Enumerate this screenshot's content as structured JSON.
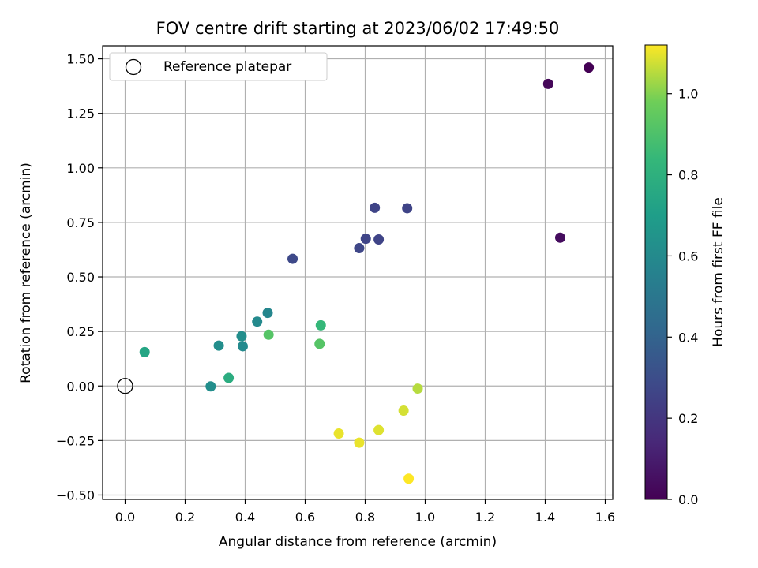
{
  "chart_data": {
    "type": "scatter",
    "title": "FOV centre drift starting at 2023/06/02 17:49:50",
    "xlabel": "Angular distance from reference (arcmin)",
    "ylabel": "Rotation from reference (arcmin)",
    "xlim": [
      -0.075,
      1.625
    ],
    "ylim": [
      -0.52,
      1.56
    ],
    "xticks": [
      0.0,
      0.2,
      0.4,
      0.6,
      0.8,
      1.0,
      1.2,
      1.4,
      1.6
    ],
    "xtick_labels": [
      "0.0",
      "0.2",
      "0.4",
      "0.6",
      "0.8",
      "1.0",
      "1.2",
      "1.4",
      "1.6"
    ],
    "yticks": [
      -0.5,
      -0.25,
      0.0,
      0.25,
      0.5,
      0.75,
      1.0,
      1.25,
      1.5
    ],
    "ytick_labels": [
      "−0.50",
      "−0.25",
      "0.00",
      "0.25",
      "0.50",
      "0.75",
      "1.00",
      "1.25",
      "1.50"
    ],
    "grid": true,
    "legend": {
      "position": "top-left",
      "entries": [
        "Reference platepar"
      ]
    },
    "reference_point": {
      "x": 0.0,
      "y": 0.0
    },
    "colorbar": {
      "label": "Hours from first FF file",
      "colormap": "viridis",
      "range": [
        0.0,
        1.12
      ],
      "ticks": [
        0.0,
        0.2,
        0.4,
        0.6,
        0.8,
        1.0
      ],
      "tick_labels": [
        "0.0",
        "0.2",
        "0.4",
        "0.6",
        "0.8",
        "1.0"
      ]
    },
    "points": [
      {
        "x": 1.545,
        "y": 1.46,
        "hours": 0.0
      },
      {
        "x": 1.41,
        "y": 1.385,
        "hours": 0.02
      },
      {
        "x": 1.45,
        "y": 0.68,
        "hours": 0.04
      },
      {
        "x": 0.94,
        "y": 0.815,
        "hours": 0.26
      },
      {
        "x": 0.832,
        "y": 0.817,
        "hours": 0.26
      },
      {
        "x": 0.802,
        "y": 0.675,
        "hours": 0.26
      },
      {
        "x": 0.845,
        "y": 0.672,
        "hours": 0.26
      },
      {
        "x": 0.78,
        "y": 0.632,
        "hours": 0.27
      },
      {
        "x": 0.558,
        "y": 0.583,
        "hours": 0.28
      },
      {
        "x": 0.475,
        "y": 0.335,
        "hours": 0.58
      },
      {
        "x": 0.44,
        "y": 0.295,
        "hours": 0.6
      },
      {
        "x": 0.388,
        "y": 0.228,
        "hours": 0.62
      },
      {
        "x": 0.312,
        "y": 0.185,
        "hours": 0.62
      },
      {
        "x": 0.392,
        "y": 0.182,
        "hours": 0.6
      },
      {
        "x": 0.285,
        "y": -0.002,
        "hours": 0.62
      },
      {
        "x": 0.065,
        "y": 0.155,
        "hours": 0.74
      },
      {
        "x": 0.345,
        "y": 0.037,
        "hours": 0.78
      },
      {
        "x": 0.652,
        "y": 0.278,
        "hours": 0.84
      },
      {
        "x": 0.478,
        "y": 0.235,
        "hours": 0.92
      },
      {
        "x": 0.648,
        "y": 0.193,
        "hours": 0.92
      },
      {
        "x": 0.975,
        "y": -0.012,
        "hours": 1.05
      },
      {
        "x": 0.928,
        "y": -0.113,
        "hours": 1.08
      },
      {
        "x": 0.845,
        "y": -0.202,
        "hours": 1.09
      },
      {
        "x": 0.712,
        "y": -0.218,
        "hours": 1.1
      },
      {
        "x": 0.78,
        "y": -0.26,
        "hours": 1.1
      },
      {
        "x": 0.945,
        "y": -0.425,
        "hours": 1.12
      }
    ]
  }
}
